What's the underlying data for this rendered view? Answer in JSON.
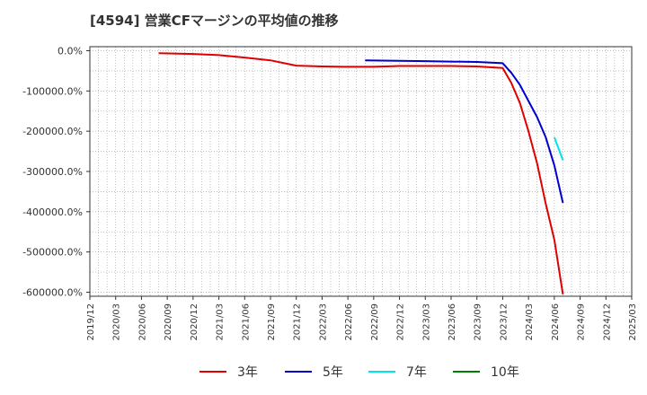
{
  "chart_data": {
    "type": "line",
    "title": "[4594]  営業CFマージンの平均値の推移",
    "xlabel": "",
    "ylabel": "",
    "ylim": [
      -610000,
      10000
    ],
    "y_ticks": [
      0,
      -100000,
      -200000,
      -300000,
      -400000,
      -500000,
      -600000
    ],
    "y_tick_labels": [
      "0.0%",
      "-100000.0%",
      "-200000.0%",
      "-300000.0%",
      "-400000.0%",
      "-500000.0%",
      "-600000.0%"
    ],
    "x_tick_labels": [
      "2019/12",
      "2020/03",
      "2020/06",
      "2020/09",
      "2020/12",
      "2021/03",
      "2021/06",
      "2021/09",
      "2021/12",
      "2022/03",
      "2022/06",
      "2022/09",
      "2022/12",
      "2023/03",
      "2023/06",
      "2023/09",
      "2023/12",
      "2024/03",
      "2024/06",
      "2024/09",
      "2024/12",
      "2025/03"
    ],
    "grid": true,
    "legend_position": "bottom",
    "series": [
      {
        "name": "3年",
        "color": "#e00000",
        "points": [
          [
            "2020/08",
            -6000
          ],
          [
            "2020/12",
            -8000
          ],
          [
            "2021/03",
            -11000
          ],
          [
            "2021/06",
            -17000
          ],
          [
            "2021/09",
            -24000
          ],
          [
            "2021/12",
            -37000
          ],
          [
            "2022/03",
            -39000
          ],
          [
            "2022/06",
            -40000
          ],
          [
            "2022/09",
            -40000
          ],
          [
            "2022/12",
            -38000
          ],
          [
            "2023/03",
            -38000
          ],
          [
            "2023/06",
            -38000
          ],
          [
            "2023/09",
            -39000
          ],
          [
            "2023/12",
            -43000
          ],
          [
            "2024/01",
            -80000
          ],
          [
            "2024/02",
            -130000
          ],
          [
            "2024/03",
            -200000
          ],
          [
            "2024/04",
            -280000
          ],
          [
            "2024/05",
            -380000
          ],
          [
            "2024/06",
            -470000
          ],
          [
            "2024/07",
            -605000
          ]
        ]
      },
      {
        "name": "5年",
        "color": "#0000cc",
        "points": [
          [
            "2022/08",
            -24000
          ],
          [
            "2022/12",
            -25000
          ],
          [
            "2023/03",
            -26000
          ],
          [
            "2023/06",
            -27000
          ],
          [
            "2023/09",
            -28000
          ],
          [
            "2023/12",
            -31000
          ],
          [
            "2024/01",
            -55000
          ],
          [
            "2024/02",
            -85000
          ],
          [
            "2024/03",
            -125000
          ],
          [
            "2024/04",
            -165000
          ],
          [
            "2024/05",
            -215000
          ],
          [
            "2024/06",
            -285000
          ],
          [
            "2024/07",
            -378000
          ]
        ]
      },
      {
        "name": "7年",
        "color": "#00e5e5",
        "points": [
          [
            "2024/06",
            -215000
          ],
          [
            "2024/07",
            -272000
          ]
        ]
      },
      {
        "name": "10年",
        "color": "#008000",
        "points": []
      }
    ]
  }
}
